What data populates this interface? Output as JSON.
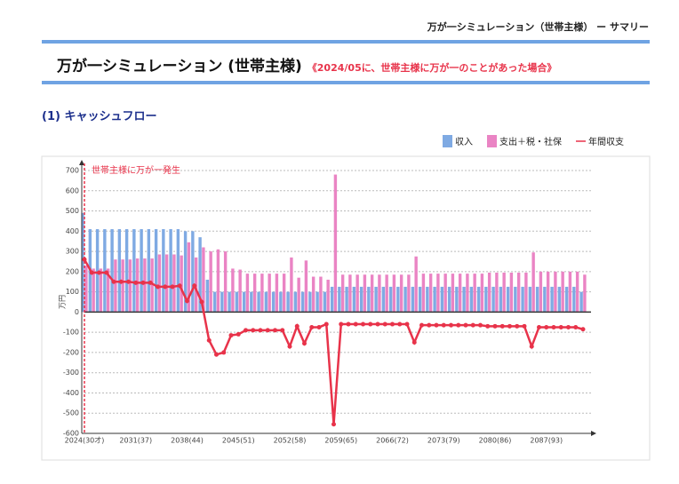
{
  "header": "万が一シミュレーション（世帯主様） ー サマリー",
  "title": "万が一シミュレーション (世帯主様)",
  "subtitle": "《2024/05に、世帯主様に万が一のことがあった場合》",
  "section": "(1) キャッシュフロー",
  "chart_data": {
    "type": "bar-line",
    "annotation": "世帯主様に万が一発生",
    "y_label": "万円",
    "categories": [
      "2024(30才)",
      null,
      null,
      null,
      null,
      null,
      null,
      "2031(37)",
      null,
      null,
      null,
      null,
      null,
      null,
      "2038(44)",
      null,
      null,
      null,
      null,
      null,
      null,
      "2045(51)",
      null,
      null,
      null,
      null,
      null,
      null,
      "2052(58)",
      null,
      null,
      null,
      null,
      null,
      null,
      "2059(65)",
      null,
      null,
      null,
      null,
      null,
      null,
      "2066(72)",
      null,
      null,
      null,
      null,
      null,
      null,
      "2073(79)",
      null,
      null,
      null,
      null,
      null,
      null,
      "2080(86)",
      null,
      null,
      null,
      null,
      null,
      null,
      "2087(93)",
      null,
      null,
      null,
      null,
      null
    ],
    "series": [
      {
        "name": "収入",
        "color": "#7faae3",
        "kind": "bar",
        "values": [
          490,
          410,
          410,
          410,
          410,
          410,
          410,
          410,
          410,
          410,
          410,
          410,
          410,
          410,
          400,
          400,
          370,
          160,
          100,
          100,
          100,
          100,
          100,
          100,
          100,
          100,
          100,
          100,
          100,
          100,
          100,
          100,
          100,
          100,
          125,
          125,
          125,
          125,
          125,
          125,
          125,
          125,
          125,
          125,
          125,
          125,
          125,
          125,
          125,
          125,
          125,
          125,
          125,
          125,
          125,
          125,
          125,
          125,
          125,
          125,
          125,
          125,
          125,
          125,
          125,
          125,
          125,
          125,
          100
        ]
      },
      {
        "name": "支出＋税・社保",
        "color": "#ea84c4",
        "kind": "bar",
        "values": [
          230,
          215,
          215,
          215,
          260,
          260,
          260,
          265,
          265,
          265,
          285,
          285,
          285,
          280,
          345,
          270,
          320,
          300,
          310,
          300,
          215,
          210,
          190,
          190,
          190,
          190,
          190,
          190,
          270,
          170,
          255,
          175,
          175,
          160,
          680,
          185,
          185,
          185,
          185,
          185,
          185,
          185,
          185,
          185,
          185,
          275,
          190,
          190,
          190,
          190,
          190,
          190,
          190,
          190,
          190,
          195,
          195,
          195,
          195,
          195,
          195,
          295,
          200,
          200,
          200,
          200,
          200,
          200,
          185
        ]
      },
      {
        "name": "年間収支",
        "color": "#e8334a",
        "kind": "line",
        "values": [
          260,
          195,
          195,
          195,
          150,
          150,
          150,
          145,
          145,
          145,
          125,
          125,
          125,
          130,
          55,
          130,
          50,
          -140,
          -210,
          -200,
          -115,
          -110,
          -90,
          -90,
          -90,
          -90,
          -90,
          -90,
          -170,
          -70,
          -155,
          -75,
          -75,
          -60,
          -555,
          -60,
          -60,
          -60,
          -60,
          -60,
          -60,
          -60,
          -60,
          -60,
          -60,
          -150,
          -65,
          -65,
          -65,
          -65,
          -65,
          -65,
          -65,
          -65,
          -65,
          -70,
          -70,
          -70,
          -70,
          -70,
          -70,
          -170,
          -75,
          -75,
          -75,
          -75,
          -75,
          -75,
          -85
        ]
      }
    ],
    "ylim": [
      -600,
      700
    ],
    "yticks": [
      -600,
      -500,
      -400,
      -300,
      -200,
      -100,
      0,
      100,
      200,
      300,
      400,
      500,
      600,
      700
    ],
    "grid": true
  }
}
